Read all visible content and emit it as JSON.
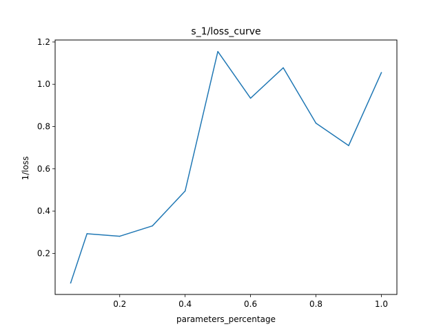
{
  "chart_data": {
    "type": "line",
    "title": "s_1/loss_curve",
    "xlabel": "parameters_percentage",
    "ylabel": "1/loss",
    "xlim": [
      0.0025,
      1.0475
    ],
    "ylim": [
      0.0055,
      1.2095
    ],
    "x_ticks": [
      0.2,
      0.4,
      0.6,
      0.8,
      1.0
    ],
    "x_tick_labels": [
      "0.2",
      "0.4",
      "0.6",
      "0.8",
      "1.0"
    ],
    "y_ticks": [
      0.2,
      0.4,
      0.6,
      0.8,
      1.0,
      1.2
    ],
    "y_tick_labels": [
      "0.2",
      "0.4",
      "0.6",
      "0.8",
      "1.0",
      "1.2"
    ],
    "grid": false,
    "series": [
      {
        "color": "#1f77b4",
        "x": [
          0.05,
          0.1,
          0.2,
          0.3,
          0.4,
          0.5,
          0.6,
          0.7,
          0.8,
          0.9,
          1.0
        ],
        "y": [
          0.06,
          0.293,
          0.281,
          0.33,
          0.495,
          1.155,
          0.934,
          1.078,
          0.816,
          0.71,
          1.055
        ]
      }
    ]
  }
}
